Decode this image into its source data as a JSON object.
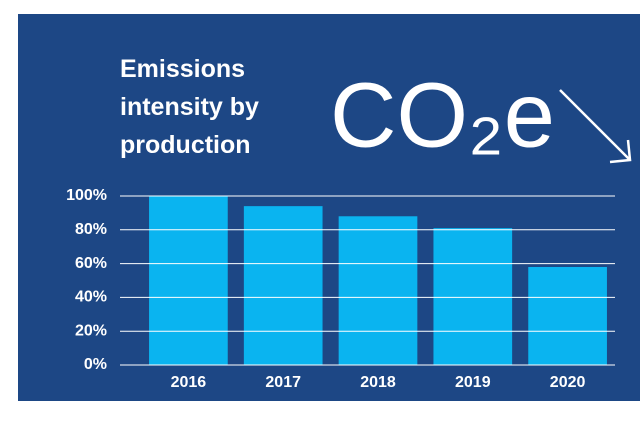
{
  "chart_data": {
    "type": "bar",
    "title": "Emissions intensity by production",
    "annotation": "CO₂e",
    "categories": [
      "2016",
      "2017",
      "2018",
      "2019",
      "2020"
    ],
    "values": [
      100,
      94,
      88,
      81,
      58
    ],
    "color": "#0ab4f0",
    "ylim": [
      0,
      100
    ],
    "yticks": [
      {
        "value": 0,
        "label": "0%"
      },
      {
        "value": 20,
        "label": "20%"
      },
      {
        "value": 40,
        "label": "40%"
      },
      {
        "value": 60,
        "label": "60%"
      },
      {
        "value": 80,
        "label": "80%"
      },
      {
        "value": 100,
        "label": "100%"
      }
    ],
    "grid": true
  }
}
